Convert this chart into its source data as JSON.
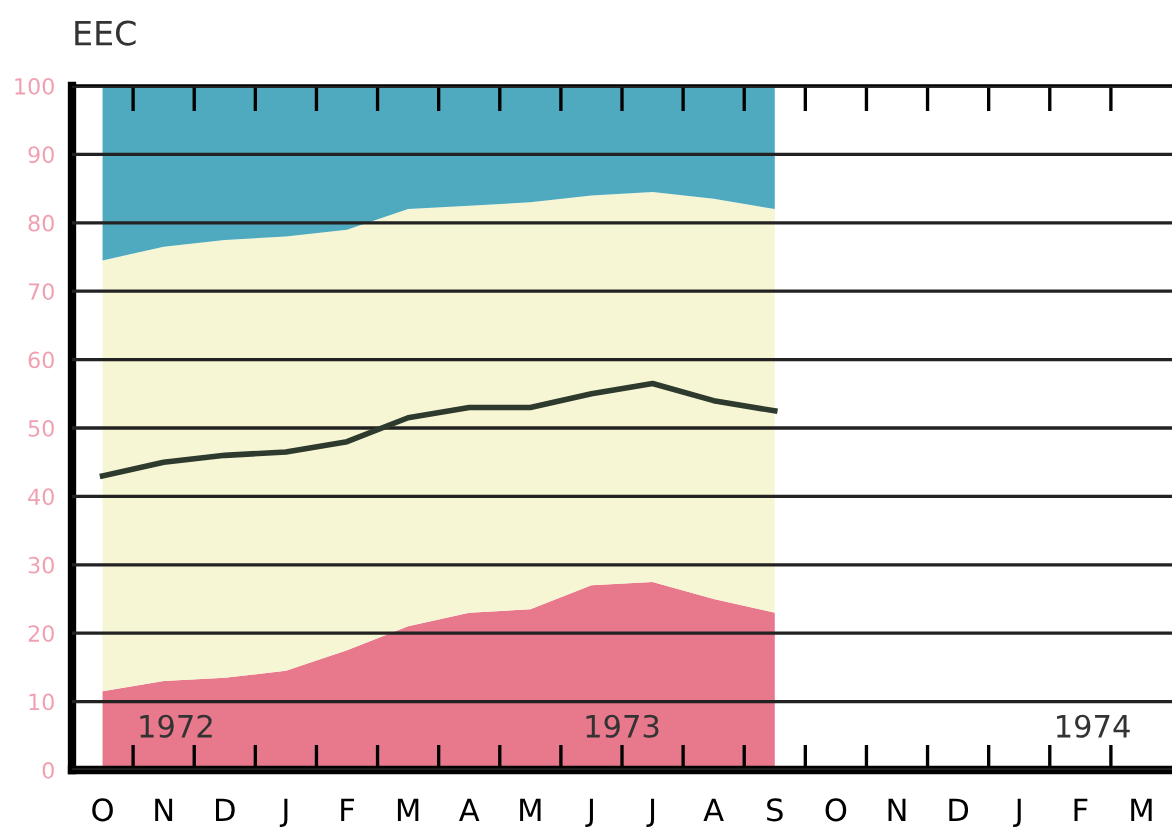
{
  "chart_data": {
    "type": "area",
    "title": "EEC",
    "stacked": true,
    "categories": [
      "O",
      "N",
      "D",
      "J",
      "F",
      "M",
      "A",
      "M",
      "J",
      "J",
      "A",
      "S",
      "O",
      "N",
      "D",
      "J",
      "F",
      "M"
    ],
    "series": [
      {
        "color": "#e8788c",
        "values": [
          11.5,
          13,
          13.5,
          14.5,
          17.5,
          21,
          23,
          23.5,
          27,
          27.5,
          25,
          23,
          null,
          null,
          null,
          null,
          null,
          null
        ]
      },
      {
        "color": "#f7f6d4",
        "values": [
          63,
          63.5,
          64,
          63.5,
          61.5,
          61,
          59.5,
          59.5,
          57,
          57,
          58.5,
          59,
          null,
          null,
          null,
          null,
          null,
          null
        ]
      },
      {
        "color": "#4faabf",
        "values": [
          25.5,
          23.5,
          22.5,
          22,
          21,
          18,
          17.5,
          17,
          16,
          15.5,
          16.5,
          18,
          null,
          null,
          null,
          null,
          null,
          null
        ]
      },
      {
        "type": "line",
        "color": "#2e3a2e",
        "values": [
          43,
          45,
          46,
          46.5,
          48,
          51.5,
          53,
          53,
          55,
          56.5,
          54,
          52.5,
          null,
          null,
          null,
          null,
          null,
          null
        ]
      }
    ],
    "ylim": [
      0,
      100
    ],
    "yticks": [
      0,
      10,
      20,
      30,
      40,
      50,
      60,
      70,
      80,
      90,
      100
    ],
    "grid": "y",
    "legend": false,
    "annotations": [
      "1972",
      "1973",
      "1974"
    ]
  }
}
